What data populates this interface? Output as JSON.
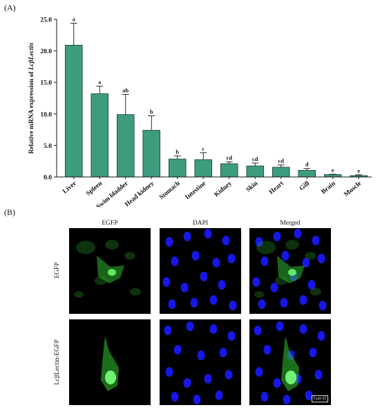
{
  "panel_a_label": "(A)",
  "panel_b_label": "(B)",
  "chart_data": {
    "type": "bar",
    "ylabel_prefix": "Relative mRNA expression of ",
    "ylabel_gene": "LcβLectin",
    "ylim": [
      0,
      25
    ],
    "yticks": [
      "0.0",
      "5.0",
      "10.0",
      "15.0",
      "20.0",
      "25.0"
    ],
    "ytick_values": [
      0,
      5,
      10,
      15,
      20,
      25
    ],
    "categories": [
      "Liver",
      "Spleen",
      "Swim bladder",
      "Head kidney",
      "Stomach",
      "Intestine",
      "Kidney",
      "Skin",
      "Heart",
      "Gill",
      "Brain",
      "Muscle"
    ],
    "values": [
      20.9,
      13.2,
      9.9,
      7.4,
      2.85,
      2.75,
      2.1,
      1.75,
      1.55,
      1.05,
      0.38,
      0.22
    ],
    "errors": [
      3.5,
      1.2,
      3.2,
      2.3,
      0.5,
      1.1,
      0.3,
      0.45,
      0.35,
      0.3,
      0.05,
      0.12
    ],
    "significance_letters": [
      "a",
      "a",
      "ab",
      "b",
      "b",
      "c",
      "cd",
      "cd",
      "cd",
      "d",
      "e",
      "e"
    ],
    "bar_color": "#3d9b7e",
    "grid": false
  },
  "microscopy": {
    "columns": [
      "EGFP",
      "DAPI",
      "Merged"
    ],
    "rows": [
      "EGFP",
      "LcβLectin-EGFP"
    ],
    "scale_bar": "0 μm 10",
    "egfp_color": "#2fb52f",
    "dapi_color": "#1a1aff"
  }
}
